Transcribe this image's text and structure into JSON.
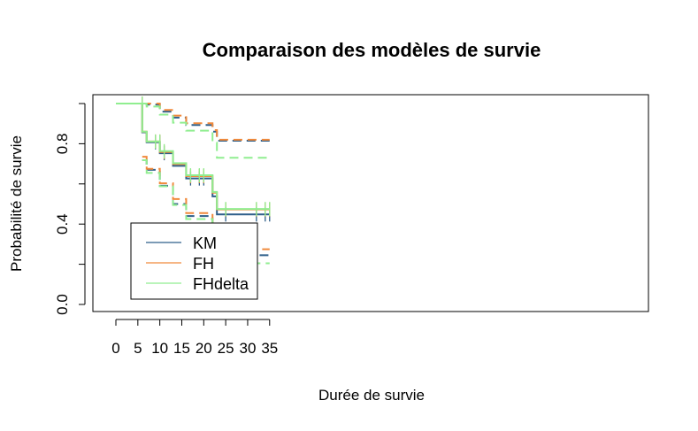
{
  "chart_data": {
    "type": "line",
    "title": "Comparaison des modèles de survie",
    "xlabel": "Durée de survie",
    "ylabel": "Probabilité de survie",
    "xlim": [
      0,
      35
    ],
    "ylim": [
      0,
      1
    ],
    "x_ticks": [
      "0",
      "5",
      "10",
      "15",
      "20",
      "25",
      "30",
      "35"
    ],
    "y_ticks": [
      "0.0",
      "0.4",
      "0.8"
    ],
    "legend_position": "bottom-left",
    "series": [
      {
        "name": "KM",
        "color": "#2f5f8a",
        "times": [
          0,
          6,
          7,
          10,
          13,
          16,
          22,
          23,
          35
        ],
        "survival": [
          1.0,
          0.857,
          0.807,
          0.753,
          0.69,
          0.627,
          0.538,
          0.448,
          0.448
        ],
        "lower": [
          null,
          0.718,
          0.67,
          0.591,
          0.5,
          0.44,
          0.34,
          0.245,
          0.245
        ],
        "upper": [
          null,
          1.0,
          0.995,
          0.96,
          0.93,
          0.893,
          0.86,
          0.815,
          0.815
        ],
        "censored_times": [
          6,
          9,
          10,
          11,
          17,
          19,
          20,
          25,
          32,
          34,
          35
        ]
      },
      {
        "name": "FH",
        "color": "#f08a3c",
        "times": [
          0,
          6,
          7,
          10,
          13,
          16,
          22,
          23,
          35
        ],
        "survival": [
          1.0,
          0.86,
          0.811,
          0.759,
          0.699,
          0.639,
          0.556,
          0.473,
          0.473
        ],
        "lower": [
          null,
          0.735,
          0.675,
          0.603,
          0.525,
          0.455,
          0.36,
          0.275,
          0.275
        ],
        "upper": [
          null,
          1.0,
          1.0,
          0.968,
          0.94,
          0.902,
          0.868,
          0.82,
          0.82
        ],
        "censored_times": [
          6,
          9,
          10,
          11,
          17,
          19,
          20,
          25,
          32,
          34,
          35
        ]
      },
      {
        "name": "FHdelta",
        "color": "#90ee90",
        "times": [
          0,
          6,
          7,
          10,
          13,
          16,
          22,
          23,
          35
        ],
        "survival": [
          1.0,
          0.86,
          0.811,
          0.763,
          0.703,
          0.643,
          0.56,
          0.475,
          0.475
        ],
        "lower": [
          null,
          0.718,
          0.655,
          0.588,
          0.495,
          0.425,
          0.315,
          0.205,
          0.205
        ],
        "upper": [
          null,
          1.0,
          0.985,
          0.945,
          0.905,
          0.865,
          0.805,
          0.73,
          0.73
        ],
        "censored_times": [
          6,
          9,
          10,
          11,
          17,
          19,
          20,
          25,
          32,
          34,
          35
        ]
      }
    ]
  }
}
